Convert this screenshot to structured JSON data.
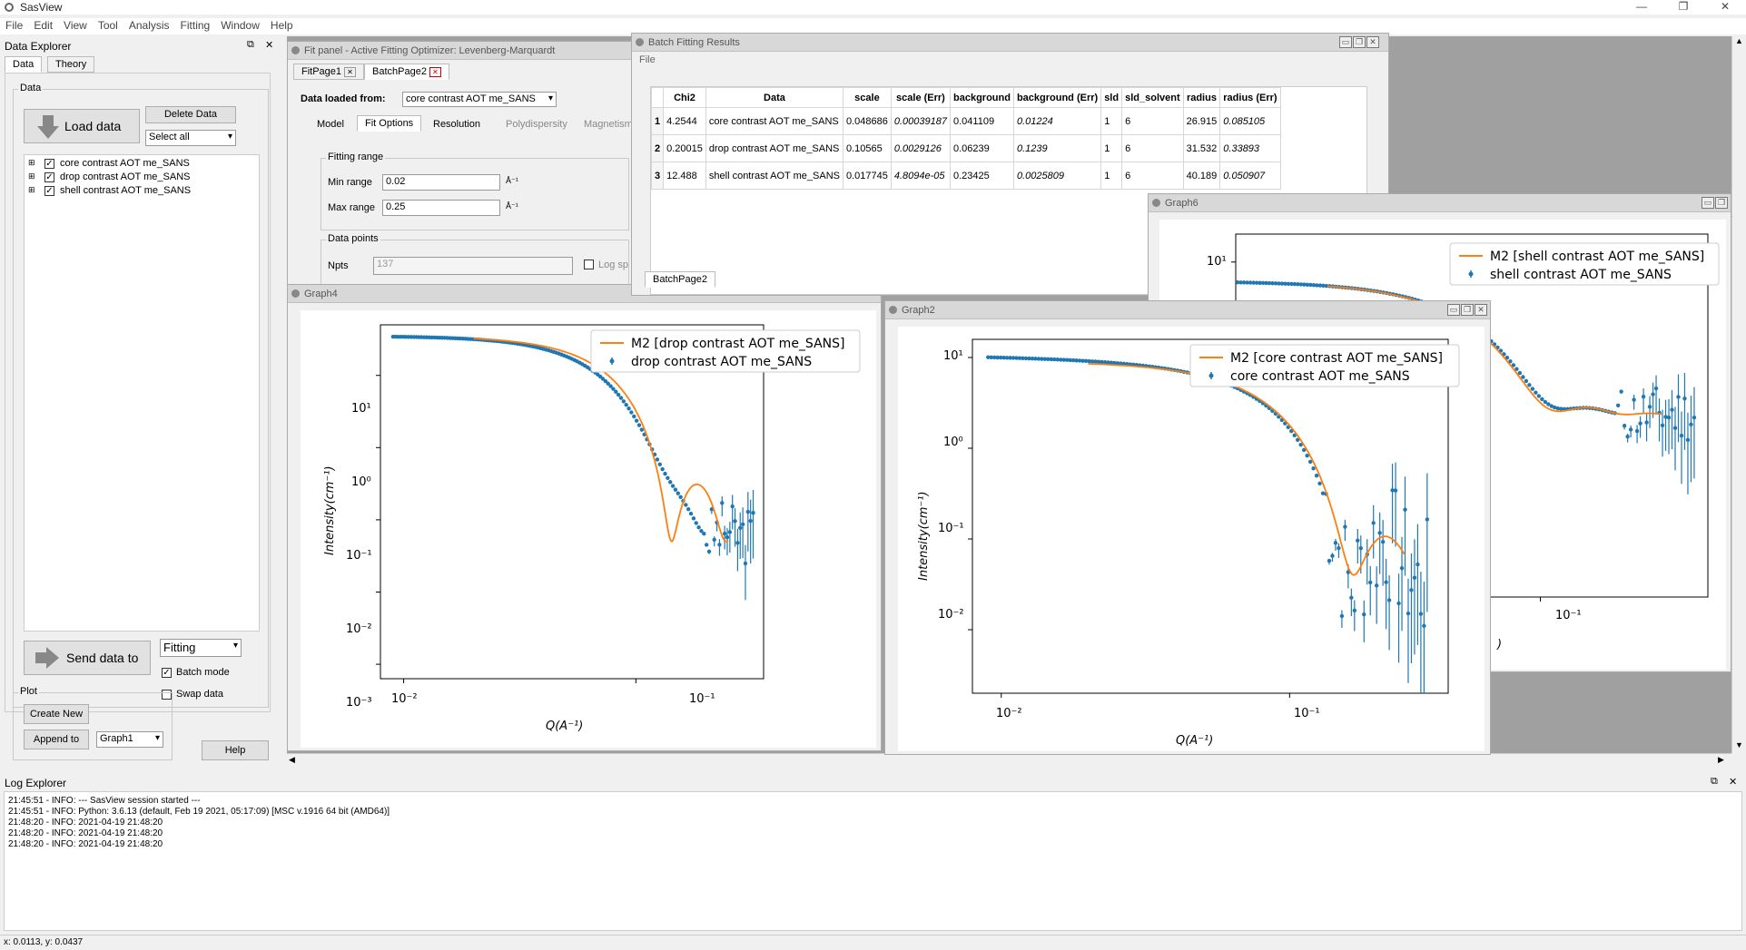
{
  "app": {
    "title": "SasView",
    "window_controls": [
      "—",
      "❐",
      "✕"
    ]
  },
  "menu": [
    "File",
    "Edit",
    "View",
    "Tool",
    "Analysis",
    "Fitting",
    "Window",
    "Help"
  ],
  "data_explorer": {
    "title": "Data Explorer",
    "controls": [
      "⧉",
      "✕"
    ],
    "tabs": [
      "Data",
      "Theory"
    ],
    "group_label": "Data",
    "load_data": "Load data",
    "delete_data": "Delete Data",
    "select_all": "Select all",
    "items": [
      "core contrast AOT me_SANS",
      "drop contrast AOT me_SANS",
      "shell contrast AOT me_SANS"
    ],
    "send_data": "Send data to",
    "send_target": "Fitting",
    "batch_mode": "Batch mode",
    "swap_data": "Swap data",
    "plot_label": "Plot",
    "create_new": "Create New",
    "append_to": "Append to",
    "append_target": "Graph1",
    "help": "Help"
  },
  "fit_panel": {
    "title": "Fit panel - Active Fitting Optimizer: Levenberg-Marquardt",
    "pages": [
      "FitPage1",
      "BatchPage2"
    ],
    "data_loaded_label": "Data loaded from:",
    "data_loaded_value": "core contrast AOT me_SANS",
    "subtabs": [
      "Model",
      "Fit Options",
      "Resolution",
      "Polydispersity",
      "Magnetism"
    ],
    "fitting_range": "Fitting range",
    "min_range_label": "Min range",
    "min_range": "0.02",
    "max_range_label": "Max range",
    "max_range": "0.25",
    "unit": "Å⁻¹",
    "data_points": "Data points",
    "npts_label": "Npts",
    "npts": "137",
    "log_spacing": "Log sp"
  },
  "batch": {
    "title": "Batch Fitting Results",
    "menu": "File",
    "controls": [
      "▭",
      "❐",
      "✕"
    ],
    "headers": [
      "",
      "Chi2",
      "Data",
      "scale",
      "scale (Err)",
      "background",
      "background (Err)",
      "sld",
      "sld_solvent",
      "radius",
      "radius (Err)"
    ],
    "rows": [
      [
        "1",
        "4.2544",
        "core contrast AOT me_SANS",
        "0.048686",
        "0.00039187",
        "0.041109",
        "0.01224",
        "1",
        "6",
        "26.915",
        "0.085105"
      ],
      [
        "2",
        "0.20015",
        "drop contrast AOT me_SANS",
        "0.10565",
        "0.0029126",
        "0.06239",
        "0.1239",
        "1",
        "6",
        "31.532",
        "0.33893"
      ],
      [
        "3",
        "12.488",
        "shell contrast AOT me_SANS",
        "0.017745",
        "4.8094e-05",
        "0.23425",
        "0.0025809",
        "1",
        "6",
        "40.189",
        "0.050907"
      ]
    ],
    "tab": "BatchPage2"
  },
  "graphs": {
    "graph4": {
      "title": "Graph4",
      "legend_model": "M2 [drop contrast AOT me_SANS]",
      "legend_data": "drop contrast AOT me_SANS",
      "xlabel": "Q(A⁻¹)",
      "ylabel": "Intensity(cm⁻¹)",
      "yticks": [
        "10¹",
        "10⁰",
        "10⁻¹",
        "10⁻²",
        "10⁻³"
      ],
      "xticks": [
        "10⁻²",
        "10⁻¹"
      ]
    },
    "graph2": {
      "title": "Graph2",
      "legend_model": "M2 [core contrast AOT me_SANS]",
      "legend_data": "core contrast AOT me_SANS",
      "xlabel": "Q(A⁻¹)",
      "ylabel": "Intensity(cm⁻¹)",
      "yticks": [
        "10¹",
        "10⁰",
        "10⁻¹",
        "10⁻²"
      ],
      "xticks": [
        "10⁻²",
        "10⁻¹"
      ]
    },
    "graph6": {
      "title": "Graph6",
      "legend_model": "M2 [shell contrast AOT me_SANS]",
      "legend_data": "shell contrast AOT me_SANS",
      "yticks": [
        "10¹"
      ],
      "xticks": [
        "10⁻¹"
      ],
      "xlabel_fragment": ")"
    }
  },
  "log": {
    "title": "Log Explorer",
    "controls": [
      "⧉",
      "✕"
    ],
    "lines": [
      "21:45:51 - INFO:  --- SasView session started ---",
      "21:45:51 - INFO: Python: 3.6.13 (default, Feb 19 2021, 05:17:09) [MSC v.1916 64 bit (AMD64)]",
      "21:48:20 - INFO: 2021-04-19 21:48:20",
      "21:48:20 - INFO: 2021-04-19 21:48:20",
      "21:48:20 - INFO: 2021-04-19 21:48:20"
    ]
  },
  "status": "x: 0.0113, y: 0.0437",
  "colors": {
    "data": "#1f77b4",
    "model": "#ff7f0e"
  }
}
